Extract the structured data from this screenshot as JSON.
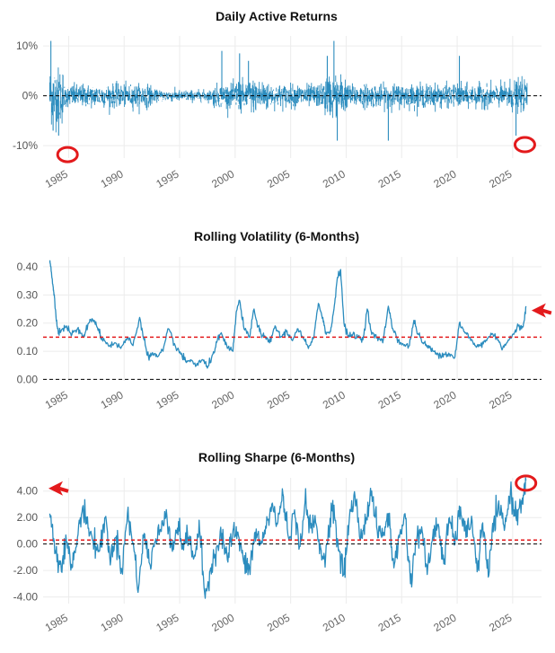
{
  "chart_data": [
    {
      "type": "line",
      "title": "Daily Active Returns",
      "xlabel": "",
      "ylabel": "",
      "xlim": [
        1982.7,
        2027.6
      ],
      "ylim": [
        -12.5,
        12.0
      ],
      "xticks": [
        1985,
        1990,
        1995,
        2000,
        2005,
        2010,
        2015,
        2020,
        2025
      ],
      "yticks": [
        -10,
        0,
        10
      ],
      "ytick_labels": [
        "-10%",
        "0%",
        "10%"
      ],
      "series": [
        {
          "name": "Daily Active Returns",
          "color": "#2b8cbe",
          "start": 1983.3,
          "end": 2026.3
        }
      ],
      "reference_lines": [
        {
          "y": 0,
          "color": "#000000",
          "style": "dashed"
        }
      ],
      "spikes": [
        {
          "x": 1983.4,
          "y": 11.0
        },
        {
          "x": 1983.6,
          "y": -7.0
        },
        {
          "x": 1984.1,
          "y": -8.0
        },
        {
          "x": 1998.8,
          "y": 9.0
        },
        {
          "x": 2000.4,
          "y": 8.5
        },
        {
          "x": 2001.2,
          "y": 7.0
        },
        {
          "x": 2008.3,
          "y": 8.0
        },
        {
          "x": 2008.9,
          "y": 11.0
        },
        {
          "x": 2009.2,
          "y": -9.0
        },
        {
          "x": 2013.8,
          "y": -9.0
        },
        {
          "x": 2020.2,
          "y": 8.0
        },
        {
          "x": 2025.3,
          "y": -8.0
        }
      ],
      "annotations": [
        {
          "type": "circle",
          "color": "#e31a1c",
          "x": 1984.9,
          "y": -11.8
        },
        {
          "type": "circle",
          "color": "#e31a1c",
          "x": 2026.1,
          "y": -9.8
        }
      ]
    },
    {
      "type": "line",
      "title": "Rolling Volatility (6-Months)",
      "xlabel": "",
      "ylabel": "",
      "xlim": [
        1982.7,
        2027.6
      ],
      "ylim": [
        -0.005,
        0.435
      ],
      "xticks": [
        1985,
        1990,
        1995,
        2000,
        2005,
        2010,
        2015,
        2020,
        2025
      ],
      "yticks": [
        0.0,
        0.1,
        0.2,
        0.3,
        0.4
      ],
      "ytick_labels": [
        "0.00",
        "0.10",
        "0.20",
        "0.30",
        "0.40"
      ],
      "series": [
        {
          "name": "Rolling Volatility",
          "color": "#2b8cbe",
          "x": [
            1983.3,
            1983.4,
            1983.6,
            1983.7,
            1983.8,
            1984.0,
            1984.3,
            1984.8,
            1985.3,
            1985.8,
            1986.3,
            1986.8,
            1987.3,
            1987.7,
            1987.9,
            1988.2,
            1988.7,
            1989.2,
            1989.7,
            1990.3,
            1990.8,
            1991.4,
            1991.8,
            1992.2,
            1992.6,
            1993.0,
            1993.5,
            1994.0,
            1994.6,
            1995.1,
            1995.6,
            1996.0,
            1996.5,
            1997.1,
            1997.5,
            1998.0,
            1998.4,
            1998.8,
            1999.3,
            1999.8,
            2000.1,
            2000.4,
            2000.8,
            2001.3,
            2001.7,
            2002.2,
            2002.6,
            2003.1,
            2003.6,
            2004.1,
            2004.6,
            2005.1,
            2005.6,
            2006.1,
            2006.6,
            2007.1,
            2007.5,
            2007.9,
            2008.2,
            2008.6,
            2008.9,
            2009.2,
            2009.5,
            2009.8,
            2010.2,
            2010.6,
            2011.1,
            2011.5,
            2011.9,
            2012.3,
            2012.8,
            2013.3,
            2013.8,
            2014.2,
            2014.7,
            2015.2,
            2015.7,
            2016.1,
            2016.5,
            2016.9,
            2017.3,
            2017.8,
            2018.3,
            2018.8,
            2019.3,
            2019.8,
            2020.2,
            2020.6,
            2021.1,
            2021.6,
            2022.1,
            2022.6,
            2023.1,
            2023.6,
            2024.1,
            2024.6,
            2025.1,
            2025.5,
            2025.8,
            2026.0,
            2026.2
          ],
          "y": [
            0.42,
            0.4,
            0.33,
            0.3,
            0.25,
            0.18,
            0.17,
            0.19,
            0.16,
            0.18,
            0.15,
            0.2,
            0.21,
            0.18,
            0.15,
            0.14,
            0.12,
            0.13,
            0.11,
            0.15,
            0.12,
            0.22,
            0.14,
            0.08,
            0.09,
            0.08,
            0.1,
            0.18,
            0.12,
            0.09,
            0.06,
            0.07,
            0.05,
            0.07,
            0.04,
            0.09,
            0.14,
            0.16,
            0.11,
            0.1,
            0.24,
            0.28,
            0.18,
            0.15,
            0.25,
            0.17,
            0.15,
            0.13,
            0.19,
            0.15,
            0.17,
            0.14,
            0.18,
            0.15,
            0.11,
            0.15,
            0.27,
            0.22,
            0.16,
            0.17,
            0.25,
            0.36,
            0.39,
            0.2,
            0.15,
            0.16,
            0.15,
            0.14,
            0.25,
            0.16,
            0.15,
            0.13,
            0.26,
            0.18,
            0.14,
            0.12,
            0.12,
            0.21,
            0.16,
            0.13,
            0.12,
            0.1,
            0.09,
            0.09,
            0.09,
            0.08,
            0.2,
            0.17,
            0.15,
            0.12,
            0.12,
            0.14,
            0.16,
            0.15,
            0.11,
            0.14,
            0.16,
            0.19,
            0.18,
            0.2,
            0.26
          ]
        }
      ],
      "reference_lines": [
        {
          "y": 0.0,
          "color": "#000000",
          "style": "dashed"
        },
        {
          "y": 0.15,
          "color": "#e31a1c",
          "style": "dashed"
        }
      ],
      "annotations": [
        {
          "type": "arrow",
          "color": "#e31a1c",
          "x": 2026.7,
          "y": 0.245,
          "direction": "left"
        }
      ]
    },
    {
      "type": "line",
      "title": "Rolling Sharpe (6-Months)",
      "xlabel": "",
      "ylabel": "",
      "xlim": [
        1982.7,
        2027.6
      ],
      "ylim": [
        -4.5,
        5.0
      ],
      "xticks": [
        1985,
        1990,
        1995,
        2000,
        2005,
        2010,
        2015,
        2020,
        2025
      ],
      "yticks": [
        -4,
        -2,
        0,
        2,
        4
      ],
      "ytick_labels": [
        "-4.00",
        "-2.00",
        "0.00",
        "2.00",
        "4.00"
      ],
      "series": [
        {
          "name": "Rolling Sharpe",
          "color": "#2b8cbe",
          "x": [
            1983.3,
            1983.8,
            1984.3,
            1984.8,
            1985.3,
            1985.8,
            1986.3,
            1986.8,
            1987.3,
            1987.8,
            1988.3,
            1988.8,
            1989.3,
            1989.8,
            1990.3,
            1990.8,
            1991.3,
            1991.8,
            1992.3,
            1992.8,
            1993.3,
            1993.8,
            1994.3,
            1994.8,
            1995.3,
            1995.8,
            1996.3,
            1996.8,
            1997.3,
            1997.8,
            1998.3,
            1998.8,
            1999.3,
            1999.8,
            2000.3,
            2000.8,
            2001.3,
            2001.8,
            2002.3,
            2002.8,
            2003.3,
            2003.8,
            2004.3,
            2004.8,
            2005.3,
            2005.8,
            2006.3,
            2006.8,
            2007.3,
            2007.8,
            2008.3,
            2008.8,
            2009.3,
            2009.8,
            2010.3,
            2010.8,
            2011.3,
            2011.8,
            2012.3,
            2012.8,
            2013.3,
            2013.8,
            2014.3,
            2014.8,
            2015.3,
            2015.8,
            2016.3,
            2016.8,
            2017.3,
            2017.8,
            2018.3,
            2018.8,
            2019.3,
            2019.8,
            2020.3,
            2020.8,
            2021.3,
            2021.8,
            2022.3,
            2022.8,
            2023.3,
            2023.8,
            2024.3,
            2024.8,
            2025.3,
            2025.8,
            2026.2
          ],
          "y": [
            2.3,
            -0.5,
            -1.5,
            0.2,
            -1.8,
            0.5,
            2.9,
            1.2,
            0.0,
            -0.5,
            2.0,
            -1.2,
            0.6,
            -2.0,
            2.3,
            0.1,
            -3.3,
            0.8,
            -1.5,
            0.2,
            1.0,
            2.6,
            -0.3,
            1.2,
            0.0,
            0.5,
            -1.0,
            1.0,
            -4.1,
            -1.8,
            -0.3,
            0.8,
            -1.2,
            1.0,
            0.6,
            -1.5,
            -2.0,
            0.9,
            0.0,
            1.2,
            3.0,
            1.5,
            3.8,
            0.5,
            2.3,
            -0.2,
            3.2,
            1.2,
            1.5,
            -1.2,
            0.0,
            3.3,
            -0.5,
            -2.3,
            2.1,
            3.6,
            0.4,
            2.0,
            4.0,
            1.0,
            0.6,
            2.3,
            -1.8,
            0.5,
            2.3,
            -3.0,
            0.3,
            1.3,
            -2.3,
            0.6,
            1.5,
            -1.5,
            2.0,
            0.0,
            2.8,
            0.5,
            2.1,
            -2.1,
            1.6,
            -2.5,
            1.8,
            2.5,
            1.3,
            4.0,
            2.0,
            3.3,
            4.8
          ]
        }
      ],
      "reference_lines": [
        {
          "y": 0.0,
          "color": "#000000",
          "style": "dashed"
        },
        {
          "y": 0.3,
          "color": "#e31a1c",
          "style": "dashed"
        }
      ],
      "annotations": [
        {
          "type": "arrow",
          "color": "#e31a1c",
          "x": 1982.7,
          "y": 4.2,
          "direction": "left"
        },
        {
          "type": "circle",
          "color": "#e31a1c",
          "x": 2026.2,
          "y": 4.6
        }
      ]
    }
  ]
}
